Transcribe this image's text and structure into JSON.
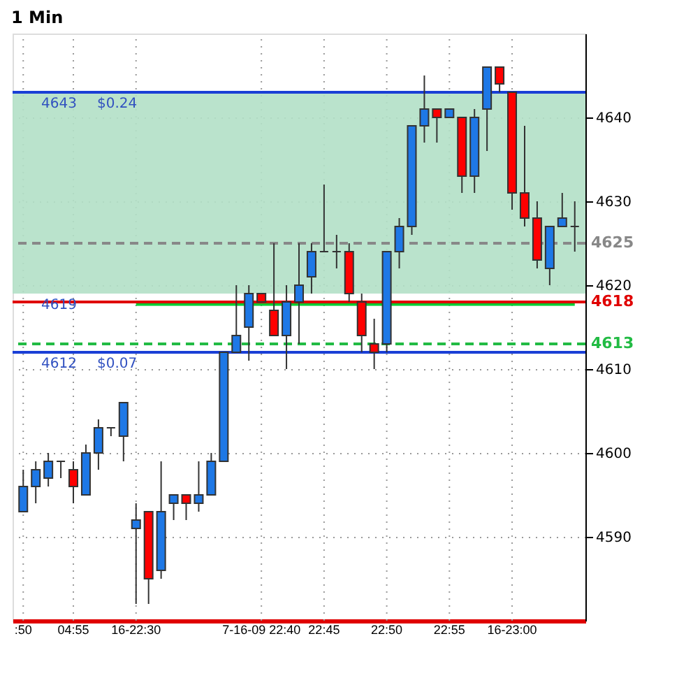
{
  "chart_data": {
    "type": "candlestick",
    "title": "1 Min",
    "categories": [
      ":50",
      null,
      null,
      null,
      "04:55",
      null,
      null,
      null,
      null,
      "16-22:30",
      null,
      null,
      null,
      null,
      null,
      null,
      null,
      null,
      null,
      "7-16-09 22:40",
      null,
      null,
      null,
      null,
      "22:45",
      null,
      null,
      null,
      null,
      "22:50",
      null,
      null,
      null,
      null,
      "22:55",
      null,
      null,
      null,
      null,
      "16-23:00",
      null,
      null,
      null,
      null,
      null
    ],
    "ohlc": [
      [
        4593,
        4598,
        4593,
        4596
      ],
      [
        4596,
        4599,
        4594,
        4598
      ],
      [
        4597,
        4600,
        4596,
        4599
      ],
      [
        4599,
        4599,
        4597,
        4599
      ],
      [
        4598,
        4599,
        4594,
        4596
      ],
      [
        4595,
        4601,
        4595,
        4600
      ],
      [
        4600,
        4604,
        4598,
        4603
      ],
      [
        4603,
        4603,
        4602,
        4603
      ],
      [
        4602,
        4606,
        4599,
        4606
      ],
      [
        4591,
        4594,
        4582,
        4592
      ],
      [
        4593,
        4593,
        4582,
        4585
      ],
      [
        4586,
        4599,
        4585,
        4593
      ],
      [
        4594,
        4595,
        4592,
        4595
      ],
      [
        4595,
        4595,
        4592,
        4594
      ],
      [
        4594,
        4599,
        4593,
        4595
      ],
      [
        4595,
        4600,
        4595,
        4599
      ],
      [
        4599,
        4612,
        4599,
        4612
      ],
      [
        4612,
        4620,
        4612,
        4614
      ],
      [
        4615,
        4620,
        4611,
        4619
      ],
      [
        4619,
        4619,
        4618,
        4618
      ],
      [
        4617,
        4625,
        4614,
        4614
      ],
      [
        4614,
        4620,
        4610,
        4618
      ],
      [
        4618,
        4625,
        4613,
        4620
      ],
      [
        4621,
        4625,
        4619,
        4624
      ],
      [
        4624,
        4632,
        4624,
        4624
      ],
      [
        4624,
        4626,
        4622,
        4624
      ],
      [
        4624,
        4625,
        4618,
        4619
      ],
      [
        4618,
        4619,
        4612,
        4614
      ],
      [
        4613,
        4616,
        4610,
        4612
      ],
      [
        4613,
        4624,
        4612,
        4624
      ],
      [
        4624,
        4628,
        4622,
        4627
      ],
      [
        4627,
        4639,
        4626,
        4639
      ],
      [
        4639,
        4645,
        4637,
        4641
      ],
      [
        4641,
        4641,
        4637,
        4640
      ],
      [
        4640,
        4641,
        4640,
        4641
      ],
      [
        4640,
        4640,
        4631,
        4633
      ],
      [
        4633,
        4641,
        4631,
        4640
      ],
      [
        4641,
        4646,
        4636,
        4646
      ],
      [
        4646,
        4646,
        4643,
        4644
      ],
      [
        4643,
        4643,
        4629,
        4631
      ],
      [
        4631,
        4639,
        4627,
        4628
      ],
      [
        4628,
        4630,
        4622,
        4623
      ],
      [
        4622,
        4627,
        4620,
        4627
      ],
      [
        4627,
        4631,
        4627,
        4628
      ],
      [
        4627,
        4630,
        4624,
        4627
      ]
    ],
    "colors": [
      "#1e78e6",
      "#1e78e6",
      "#1e78e6",
      "#333333",
      "#ff0000",
      "#1e78e6",
      "#1e78e6",
      "#333333",
      "#1e78e6",
      "#1e78e6",
      "#ff0000",
      "#1e78e6",
      "#1e78e6",
      "#ff0000",
      "#1e78e6",
      "#1e78e6",
      "#1e78e6",
      "#1e78e6",
      "#1e78e6",
      "#ff0000",
      "#ff0000",
      "#1e78e6",
      "#1e78e6",
      "#1e78e6",
      "#333333",
      "#333333",
      "#ff0000",
      "#ff0000",
      "#ff0000",
      "#1e78e6",
      "#1e78e6",
      "#1e78e6",
      "#1e78e6",
      "#ff0000",
      "#1e78e6",
      "#ff0000",
      "#1e78e6",
      "#1e78e6",
      "#ff0000",
      "#ff0000",
      "#ff0000",
      "#ff0000",
      "#1e78e6",
      "#1e78e6",
      "#333333"
    ],
    "series": [
      {
        "type": "step",
        "color": "#00cc33",
        "values": [
          null,
          null,
          null,
          null,
          null,
          null,
          null,
          null,
          null,
          4617.7,
          4617.7,
          4617.7,
          4617.7,
          4617.7,
          4617.7,
          4617.7,
          4617.7,
          4617.7,
          4617.7,
          4617.7,
          4617.7,
          4617.7,
          4617.7,
          4617.7,
          4617.7,
          4617.7,
          4617.7,
          4617.7,
          4617.7,
          4617.7,
          4617.7,
          4617.7,
          4617.7,
          4617.7,
          4617.7,
          4617.7,
          4617.7,
          4617.7,
          4617.7,
          4617.7,
          4617.7,
          4617.7,
          4617.7,
          4617.7,
          4617.7
        ]
      }
    ],
    "ylim": [
      4580,
      4650
    ],
    "yticks": [
      4590,
      4600,
      4610,
      4620,
      4630,
      4640
    ],
    "grid": true,
    "bands": [
      {
        "axis": "y",
        "from": 4619,
        "to": 4643,
        "color": "#b3e0c6"
      }
    ],
    "ref_lines": [
      {
        "axis": "y",
        "value": 4643,
        "color": "#1a3fd6"
      },
      {
        "axis": "y",
        "value": 4612,
        "color": "#1a3fd6"
      },
      {
        "axis": "y",
        "value": 4625,
        "label": "4625",
        "color": "#888888",
        "line_style": "dashed"
      },
      {
        "axis": "y",
        "value": 4618,
        "label": "4618",
        "color": "#e00000"
      },
      {
        "axis": "y",
        "value": 4613,
        "label": "4613",
        "color": "#22bb44",
        "line_style": "dashed"
      }
    ],
    "annotations": [
      {
        "text": "4643",
        "y": 4643
      },
      {
        "text": "4619",
        "y": 4619
      },
      {
        "text": "4612",
        "y": 4612
      },
      {
        "text": "$0.24",
        "y": 4643
      },
      {
        "text": "$0.07",
        "y": 4612
      }
    ]
  }
}
